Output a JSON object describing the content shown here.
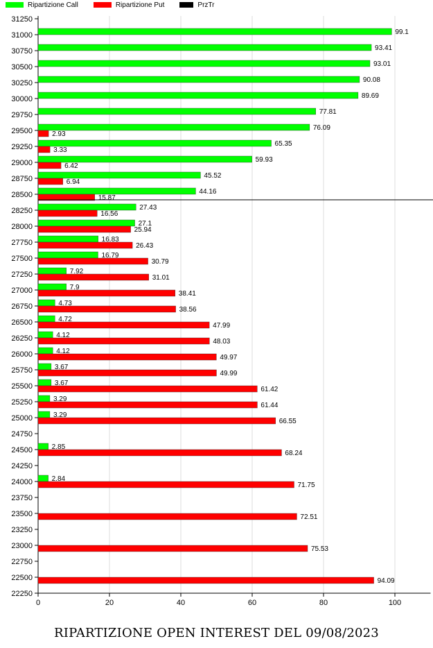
{
  "chart_data": {
    "type": "bar",
    "orientation": "horizontal",
    "title": "RIPARTIZIONE OPEN INTEREST DEL 09/08/2023",
    "legend_position": "top-left",
    "legend": [
      {
        "name": "Ripartizione Call",
        "color": "#00ff00"
      },
      {
        "name": "Ripartizione Put",
        "color": "#ff0000"
      },
      {
        "name": "PrzTr",
        "color": "#000000"
      }
    ],
    "xlim": [
      0,
      110
    ],
    "x_ticks": [
      0,
      20,
      40,
      60,
      80,
      100
    ],
    "ylim": [
      22250,
      31250
    ],
    "y_step": 250,
    "grid": "vertical",
    "price_line": 28500,
    "series": [
      {
        "name": "Ripartizione Call",
        "color": "#00ff00",
        "points": [
          {
            "strike": 31000,
            "value": 99.1
          },
          {
            "strike": 30750,
            "value": 93.41
          },
          {
            "strike": 30500,
            "value": 93.01
          },
          {
            "strike": 30250,
            "value": 90.08
          },
          {
            "strike": 30000,
            "value": 89.69
          },
          {
            "strike": 29750,
            "value": 77.81
          },
          {
            "strike": 29500,
            "value": 76.09
          },
          {
            "strike": 29250,
            "value": 65.35
          },
          {
            "strike": 29000,
            "value": 59.93
          },
          {
            "strike": 28750,
            "value": 45.52
          },
          {
            "strike": 28500,
            "value": 44.16
          },
          {
            "strike": 28250,
            "value": 27.43
          },
          {
            "strike": 28000,
            "value": 27.1
          },
          {
            "strike": 27750,
            "value": 16.83
          },
          {
            "strike": 27500,
            "value": 16.79
          },
          {
            "strike": 27250,
            "value": 7.92
          },
          {
            "strike": 27000,
            "value": 7.9
          },
          {
            "strike": 26750,
            "value": 4.73
          },
          {
            "strike": 26500,
            "value": 4.72
          },
          {
            "strike": 26250,
            "value": 4.12
          },
          {
            "strike": 26000,
            "value": 4.12
          },
          {
            "strike": 25750,
            "value": 3.67
          },
          {
            "strike": 25500,
            "value": 3.67
          },
          {
            "strike": 25250,
            "value": 3.29
          },
          {
            "strike": 25000,
            "value": 3.29
          },
          {
            "strike": 24500,
            "value": 2.85
          },
          {
            "strike": 24000,
            "value": 2.84
          }
        ]
      },
      {
        "name": "Ripartizione Put",
        "color": "#ff0000",
        "points": [
          {
            "strike": 29500,
            "value": 2.93
          },
          {
            "strike": 29250,
            "value": 3.33
          },
          {
            "strike": 29000,
            "value": 6.42
          },
          {
            "strike": 28750,
            "value": 6.94
          },
          {
            "strike": 28500,
            "value": 15.87
          },
          {
            "strike": 28250,
            "value": 16.56
          },
          {
            "strike": 28000,
            "value": 25.94
          },
          {
            "strike": 27750,
            "value": 26.43
          },
          {
            "strike": 27500,
            "value": 30.79
          },
          {
            "strike": 27250,
            "value": 31.01
          },
          {
            "strike": 27000,
            "value": 38.41
          },
          {
            "strike": 26750,
            "value": 38.56
          },
          {
            "strike": 26500,
            "value": 47.99
          },
          {
            "strike": 26250,
            "value": 48.03
          },
          {
            "strike": 26000,
            "value": 49.97
          },
          {
            "strike": 25750,
            "value": 49.99
          },
          {
            "strike": 25500,
            "value": 61.42
          },
          {
            "strike": 25250,
            "value": 61.44
          },
          {
            "strike": 25000,
            "value": 66.55
          },
          {
            "strike": 24500,
            "value": 68.24
          },
          {
            "strike": 24000,
            "value": 71.75
          },
          {
            "strike": 23500,
            "value": 72.51
          },
          {
            "strike": 23000,
            "value": 75.53
          },
          {
            "strike": 22500,
            "value": 94.09
          }
        ]
      }
    ]
  }
}
